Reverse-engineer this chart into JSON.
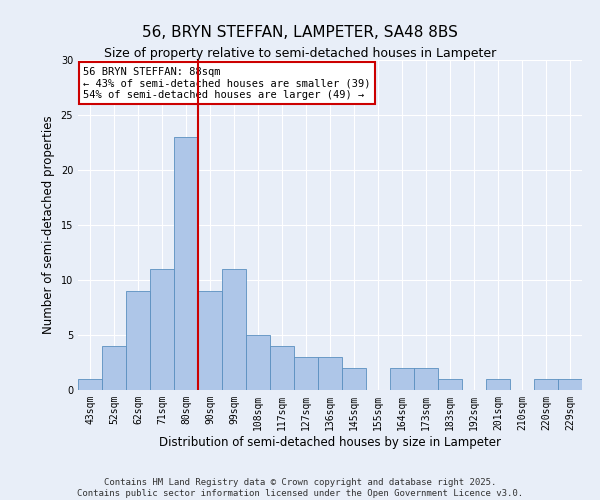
{
  "title": "56, BRYN STEFFAN, LAMPETER, SA48 8BS",
  "subtitle": "Size of property relative to semi-detached houses in Lampeter",
  "xlabel": "Distribution of semi-detached houses by size in Lampeter",
  "ylabel": "Number of semi-detached properties",
  "bins": [
    "43sqm",
    "52sqm",
    "62sqm",
    "71sqm",
    "80sqm",
    "90sqm",
    "99sqm",
    "108sqm",
    "117sqm",
    "127sqm",
    "136sqm",
    "145sqm",
    "155sqm",
    "164sqm",
    "173sqm",
    "183sqm",
    "192sqm",
    "201sqm",
    "210sqm",
    "220sqm",
    "229sqm"
  ],
  "values": [
    1,
    4,
    9,
    11,
    23,
    9,
    11,
    5,
    4,
    3,
    3,
    2,
    0,
    2,
    2,
    1,
    0,
    1,
    0,
    1,
    1
  ],
  "bar_color": "#aec6e8",
  "bar_edge_color": "#5a8fc0",
  "property_line_x": 4.5,
  "annotation_text": "56 BRYN STEFFAN: 88sqm\n← 43% of semi-detached houses are smaller (39)\n54% of semi-detached houses are larger (49) →",
  "annotation_box_color": "#ffffff",
  "annotation_box_edge": "#cc0000",
  "vline_color": "#cc0000",
  "ylim": [
    0,
    30
  ],
  "yticks": [
    0,
    5,
    10,
    15,
    20,
    25,
    30
  ],
  "background_color": "#e8eef8",
  "footer_line1": "Contains HM Land Registry data © Crown copyright and database right 2025.",
  "footer_line2": "Contains public sector information licensed under the Open Government Licence v3.0.",
  "title_fontsize": 11,
  "subtitle_fontsize": 9,
  "axis_label_fontsize": 8.5,
  "tick_fontsize": 7,
  "annotation_fontsize": 7.5,
  "footer_fontsize": 6.5
}
